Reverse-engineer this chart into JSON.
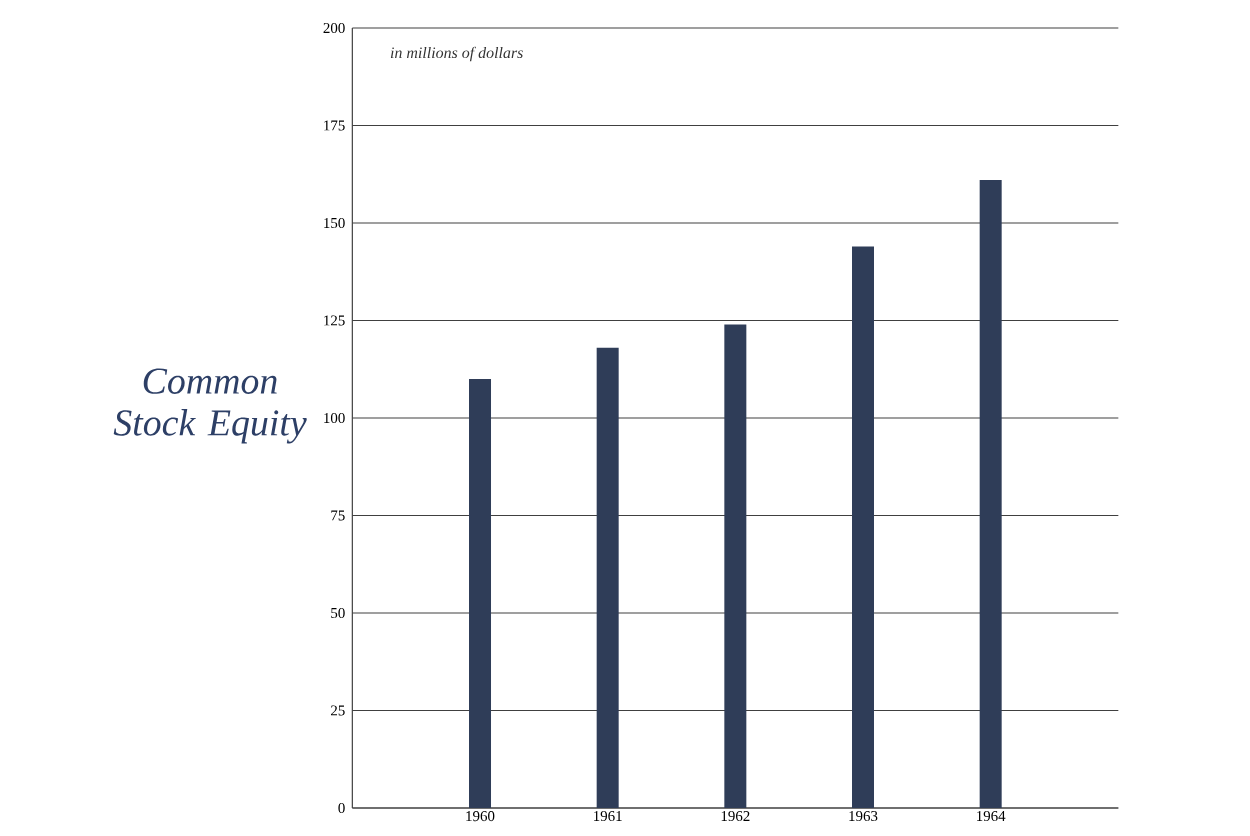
{
  "chart_data": {
    "type": "bar",
    "title": "Common Stock Equity",
    "annotations": [
      "in millions of dollars"
    ],
    "categories": [
      "1960",
      "1961",
      "1962",
      "1963",
      "1964"
    ],
    "values": [
      110,
      118,
      124,
      144,
      161
    ],
    "color": "#2f3d58",
    "ylim": [
      0,
      200
    ],
    "yticks": [
      0,
      25,
      50,
      75,
      100,
      125,
      150,
      175,
      200
    ],
    "grid": "y"
  }
}
